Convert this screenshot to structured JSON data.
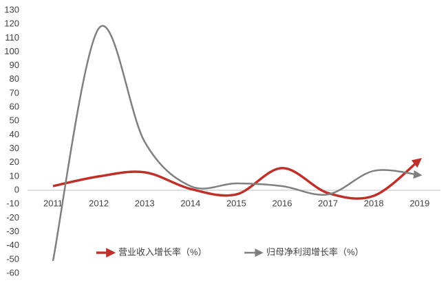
{
  "chart_data": {
    "type": "line",
    "categories": [
      "2011",
      "2012",
      "2013",
      "2014",
      "2015",
      "2016",
      "2017",
      "2018",
      "2019"
    ],
    "series": [
      {
        "name": "营业收入增长率（%）",
        "color": "#c0302b",
        "values": [
          3,
          10,
          13,
          1,
          -3,
          16,
          -2,
          -4,
          22
        ]
      },
      {
        "name": "归母净利润增长率（%）",
        "color": "#7f7f7f",
        "values": [
          -51,
          117,
          35,
          3,
          5,
          3,
          -3,
          14,
          11
        ]
      }
    ],
    "ylim": [
      -60,
      130
    ],
    "yticks": [
      -60,
      -50,
      -40,
      -30,
      -20,
      -10,
      0,
      10,
      20,
      30,
      40,
      50,
      60,
      70,
      80,
      90,
      100,
      110,
      120,
      130
    ],
    "grid": false,
    "smooth": true,
    "legend": "bottom"
  }
}
